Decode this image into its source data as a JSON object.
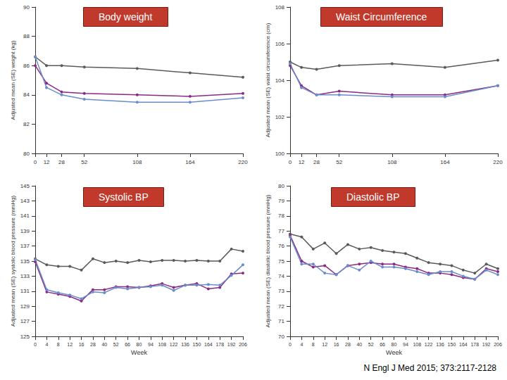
{
  "source": "N Engl J Med 2015; 373:2117-2128",
  "chart_data": [
    {
      "type": "line",
      "title": "Body weight",
      "y_label": "Adjusted mean (SE) weight (kg)",
      "x": [
        0,
        12,
        28,
        52,
        108,
        164,
        220
      ],
      "xlim": [
        0,
        220
      ],
      "xticks": [
        0,
        12,
        28,
        52,
        108,
        164,
        220
      ],
      "ylim": [
        80,
        90
      ],
      "yticks": [
        80,
        82,
        84,
        86,
        88,
        90
      ],
      "grid": false,
      "series": [
        {
          "color": "#5a5a5a",
          "marker": "circle",
          "values": [
            86.6,
            86.0,
            86.0,
            85.9,
            85.8,
            85.5,
            85.2
          ]
        },
        {
          "color": "#8b2a84",
          "marker": "circle",
          "values": [
            86.0,
            84.8,
            84.2,
            84.1,
            84.0,
            83.9,
            84.1
          ]
        },
        {
          "color": "#6b8ccc",
          "marker": "circle",
          "values": [
            86.6,
            84.5,
            84.0,
            83.7,
            83.5,
            83.5,
            83.8
          ]
        }
      ]
    },
    {
      "type": "line",
      "title": "Waist Circumference",
      "y_label": "Adjusted mean (SE) waist circumference (cm)",
      "x": [
        0,
        12,
        28,
        52,
        108,
        164,
        220
      ],
      "xlim": [
        0,
        220
      ],
      "xticks": [
        0,
        12,
        28,
        52,
        108,
        164,
        220
      ],
      "ylim": [
        100,
        108
      ],
      "yticks": [
        100,
        102,
        104,
        106,
        108
      ],
      "grid": false,
      "series": [
        {
          "color": "#5a5a5a",
          "marker": "circle",
          "values": [
            105.0,
            104.7,
            104.6,
            104.8,
            104.9,
            104.7,
            105.1
          ]
        },
        {
          "color": "#8b2a84",
          "marker": "circle",
          "values": [
            104.8,
            103.7,
            103.2,
            103.4,
            103.2,
            103.2,
            103.7
          ]
        },
        {
          "color": "#6b8ccc",
          "marker": "circle",
          "values": [
            104.9,
            103.6,
            103.2,
            103.2,
            103.1,
            103.1,
            103.7
          ]
        }
      ]
    },
    {
      "type": "line",
      "title": "Systolic BP",
      "y_label": "Adjusted mean (SE) systolic blood pressure (mmHg)",
      "x_label": "Week",
      "categories": [
        "0",
        "4",
        "8",
        "12",
        "16",
        "28",
        "40",
        "52",
        "66",
        "80",
        "94",
        "108",
        "122",
        "136",
        "150",
        "164",
        "178",
        "192",
        "206"
      ],
      "ylim": [
        125,
        145
      ],
      "yticks": [
        125,
        127,
        129,
        131,
        133,
        135,
        137,
        139,
        141,
        143,
        145
      ],
      "grid": false,
      "series": [
        {
          "color": "#5a5a5a",
          "marker": "circle",
          "values": [
            135.3,
            134.5,
            134.3,
            134.3,
            133.8,
            135.3,
            134.8,
            135.0,
            134.8,
            135.1,
            134.9,
            135.1,
            135.1,
            135.0,
            135.1,
            135.0,
            135.0,
            136.6,
            136.3
          ]
        },
        {
          "color": "#8b2a84",
          "marker": "circle",
          "values": [
            134.9,
            130.9,
            130.6,
            130.3,
            129.7,
            131.2,
            131.2,
            131.6,
            131.6,
            131.5,
            131.7,
            132.0,
            131.5,
            131.8,
            132.0,
            131.3,
            131.5,
            133.3,
            133.4
          ]
        },
        {
          "color": "#6b8ccc",
          "marker": "circle",
          "values": [
            135.2,
            131.2,
            130.8,
            130.5,
            130.0,
            130.9,
            130.8,
            131.5,
            131.3,
            131.5,
            131.6,
            131.8,
            131.1,
            131.8,
            131.8,
            131.9,
            131.8,
            133.1,
            134.5
          ]
        }
      ]
    },
    {
      "type": "line",
      "title": "Diastolic BP",
      "y_label": "Adjusted mean (SE) diastolic blood pressure (mmHg)",
      "x_label": "Week",
      "categories": [
        "0",
        "4",
        "8",
        "12",
        "16",
        "28",
        "40",
        "52",
        "66",
        "80",
        "94",
        "108",
        "122",
        "136",
        "150",
        "164",
        "178",
        "192",
        "206"
      ],
      "ylim": [
        70,
        80
      ],
      "yticks": [
        70,
        71,
        72,
        73,
        74,
        75,
        76,
        77,
        78,
        79,
        80
      ],
      "grid": false,
      "series": [
        {
          "color": "#5a5a5a",
          "marker": "circle",
          "values": [
            76.8,
            76.6,
            75.8,
            76.2,
            75.5,
            76.1,
            75.8,
            75.9,
            75.7,
            75.6,
            75.5,
            75.2,
            74.9,
            74.8,
            74.7,
            74.4,
            74.2,
            74.8,
            74.5
          ]
        },
        {
          "color": "#8b2a84",
          "marker": "circle",
          "values": [
            76.7,
            75.0,
            74.6,
            74.7,
            74.1,
            74.7,
            74.8,
            74.9,
            74.8,
            74.8,
            74.6,
            74.5,
            74.2,
            74.2,
            74.1,
            73.9,
            73.8,
            74.5,
            74.3
          ]
        },
        {
          "color": "#6b8ccc",
          "marker": "circle",
          "values": [
            76.6,
            74.8,
            74.8,
            74.2,
            74.1,
            74.7,
            74.4,
            75.0,
            74.6,
            74.6,
            74.5,
            74.3,
            74.1,
            74.3,
            74.3,
            74.0,
            73.8,
            74.4,
            74.1
          ]
        }
      ]
    }
  ]
}
